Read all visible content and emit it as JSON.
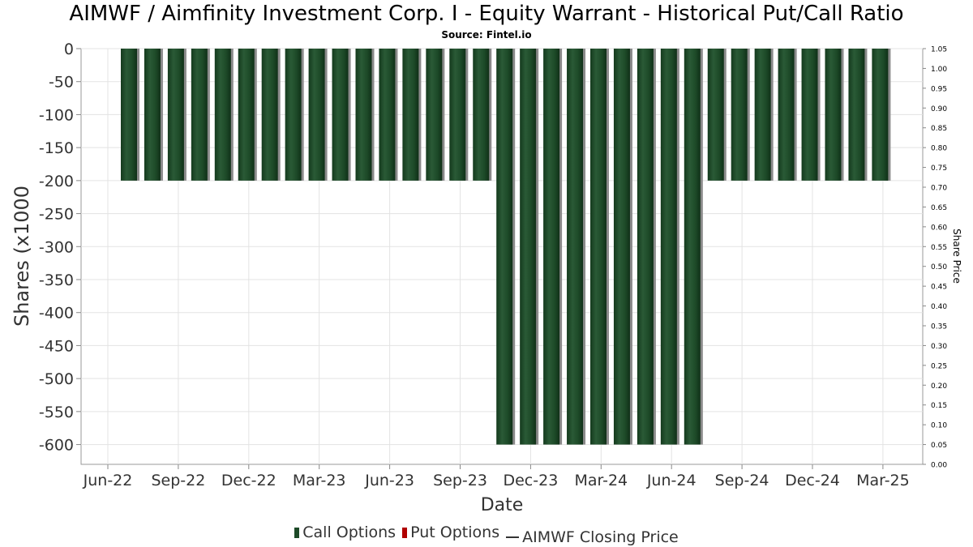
{
  "title": "AIMWF / Aimfinity Investment Corp. I - Equity Warrant - Historical Put/Call Ratio",
  "subtitle": "Source: Fintel.io",
  "chart_data": {
    "type": "bar",
    "xlabel": "Date",
    "ylabel": "Shares (x1000",
    "y2label": "Share Price",
    "ylim": [
      -630,
      0
    ],
    "y2lim": [
      0.0,
      1.05
    ],
    "yticks": [
      "0",
      "-50",
      "-100",
      "-150",
      "-200",
      "-250",
      "-300",
      "-350",
      "-400",
      "-450",
      "-500",
      "-550",
      "-600"
    ],
    "y2ticks": [
      "1.05",
      "1.00",
      "0.95",
      "0.90",
      "0.85",
      "0.80",
      "0.75",
      "0.70",
      "0.65",
      "0.60",
      "0.55",
      "0.50",
      "0.45",
      "0.40",
      "0.35",
      "0.30",
      "0.25",
      "0.20",
      "0.15",
      "0.10",
      "0.05",
      "0.00"
    ],
    "xticks": [
      "Jun-22",
      "Sep-22",
      "Dec-22",
      "Mar-23",
      "Jun-23",
      "Sep-23",
      "Dec-23",
      "Mar-24",
      "Jun-24",
      "Sep-24",
      "Dec-24",
      "Mar-25"
    ],
    "grid": true,
    "legend_position": "bottom",
    "series": [
      {
        "name": "Call Options",
        "color": "#1d4a28",
        "values": [
          -200,
          -200,
          -200,
          -200,
          -200,
          -200,
          -200,
          -200,
          -200,
          -200,
          -200,
          -200,
          -200,
          -200,
          -200,
          -200,
          -600,
          -600,
          -600,
          -600,
          -600,
          -600,
          -600,
          -600,
          -600,
          -200,
          -200,
          -200,
          -200,
          -200,
          -200,
          -200,
          -200
        ]
      },
      {
        "name": "Put Options",
        "color": "#b00000",
        "values": []
      },
      {
        "name": "AIMWF Closing Price",
        "color": "#333333",
        "values": []
      }
    ]
  }
}
